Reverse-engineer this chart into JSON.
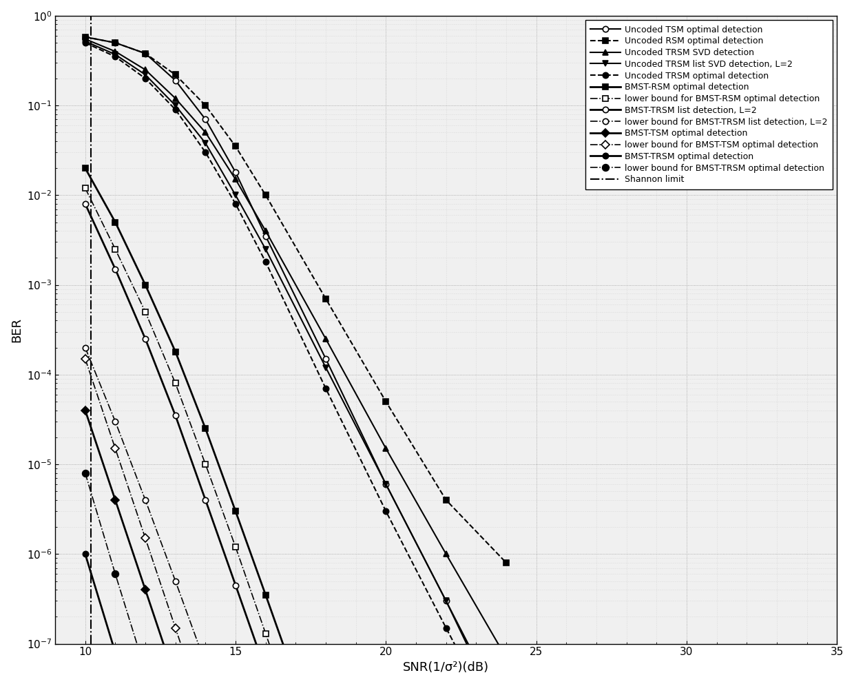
{
  "xlabel": "SNR(1/σ²)(dB)",
  "ylabel": "BER",
  "xlim": [
    9,
    35
  ],
  "ylim_log": [
    -7,
    0
  ],
  "background_color": "#ffffff",
  "series": [
    {
      "label": "Uncoded TSM optimal detection",
      "linestyle": "-",
      "linewidth": 1.5,
      "marker": "o",
      "markersize": 6,
      "color": "black",
      "fillstyle": "none",
      "x": [
        10,
        11,
        12,
        13,
        14,
        15,
        16,
        18,
        20,
        22,
        24
      ],
      "y": [
        0.58,
        0.5,
        0.38,
        0.19,
        0.07,
        0.018,
        0.0035,
        0.00015,
        6e-06,
        3e-07,
        1.2e-08
      ]
    },
    {
      "label": "Uncoded RSM optimal detection",
      "linestyle": "--",
      "linewidth": 1.5,
      "marker": "s",
      "markersize": 6,
      "color": "black",
      "fillstyle": "full",
      "x": [
        10,
        11,
        12,
        13,
        14,
        15,
        16,
        18,
        20,
        22,
        24
      ],
      "y": [
        0.58,
        0.5,
        0.38,
        0.22,
        0.1,
        0.035,
        0.01,
        0.0007,
        5e-05,
        4e-06,
        8e-07
      ]
    },
    {
      "label": "Uncoded TRSM SVD detection",
      "linestyle": "-",
      "linewidth": 1.5,
      "marker": "^",
      "markersize": 6,
      "color": "black",
      "fillstyle": "full",
      "x": [
        10,
        11,
        12,
        13,
        14,
        15,
        16,
        18,
        20,
        22,
        24
      ],
      "y": [
        0.55,
        0.4,
        0.25,
        0.12,
        0.05,
        0.015,
        0.004,
        0.00025,
        1.5e-05,
        1e-06,
        7e-08
      ]
    },
    {
      "label": "Uncoded TRSM list SVD detection, L=2",
      "linestyle": "-",
      "linewidth": 1.5,
      "marker": "v",
      "markersize": 6,
      "color": "black",
      "fillstyle": "full",
      "x": [
        10,
        11,
        12,
        13,
        14,
        15,
        16,
        18,
        20,
        22,
        24
      ],
      "y": [
        0.52,
        0.37,
        0.22,
        0.1,
        0.038,
        0.01,
        0.0025,
        0.00012,
        6e-06,
        3e-07,
        1.5e-08
      ]
    },
    {
      "label": "Uncoded TRSM optimal detection",
      "linestyle": "--",
      "linewidth": 1.5,
      "marker": "o",
      "markersize": 6,
      "color": "black",
      "fillstyle": "full",
      "x": [
        10,
        11,
        12,
        13,
        14,
        15,
        16,
        18,
        20,
        22,
        24
      ],
      "y": [
        0.5,
        0.35,
        0.2,
        0.09,
        0.03,
        0.008,
        0.0018,
        7e-05,
        3e-06,
        1.5e-07,
        8e-09
      ]
    },
    {
      "label": "BMST-RSM optimal detection",
      "linestyle": "-",
      "linewidth": 2.0,
      "marker": "s",
      "markersize": 6,
      "color": "black",
      "fillstyle": "full",
      "x": [
        10,
        11,
        12,
        13,
        14,
        15,
        16,
        18,
        20,
        22,
        24
      ],
      "y": [
        0.02,
        0.005,
        0.001,
        0.00018,
        2.5e-05,
        3e-06,
        3.5e-07,
        4.5e-09,
        6e-11,
        8e-13,
        1e-14
      ]
    },
    {
      "label": "lower bound for BMST-RSM optimal detection",
      "linestyle": "-.",
      "linewidth": 1.2,
      "marker": "s",
      "markersize": 6,
      "color": "black",
      "fillstyle": "none",
      "x": [
        10,
        11,
        12,
        13,
        14,
        15,
        16,
        18,
        20,
        22,
        24
      ],
      "y": [
        0.012,
        0.0025,
        0.0005,
        8e-05,
        1e-05,
        1.2e-06,
        1.3e-07,
        1.5e-09,
        2e-11,
        3e-13,
        4e-15
      ]
    },
    {
      "label": "BMST-TRSM list detection, L=2",
      "linestyle": "-",
      "linewidth": 2.0,
      "marker": "o",
      "markersize": 6,
      "color": "black",
      "fillstyle": "none",
      "x": [
        10,
        11,
        12,
        13,
        14,
        15,
        16,
        18,
        20,
        22,
        24
      ],
      "y": [
        0.008,
        0.0015,
        0.00025,
        3.5e-05,
        4e-06,
        4.5e-07,
        5e-08,
        6e-10,
        7e-12,
        9e-14,
        1e-15
      ]
    },
    {
      "label": "lower bound for BMST-TRSM list detection, L=2",
      "linestyle": "-.",
      "linewidth": 1.2,
      "marker": "o",
      "markersize": 6,
      "color": "black",
      "fillstyle": "none",
      "x": [
        10,
        11,
        12,
        13,
        14,
        15
      ],
      "y": [
        0.0002,
        3e-05,
        4e-06,
        5e-07,
        6e-08,
        8e-09
      ]
    },
    {
      "label": "BMST-TSM optimal detection",
      "linestyle": "-",
      "linewidth": 2.0,
      "marker": "D",
      "markersize": 6,
      "color": "black",
      "fillstyle": "full",
      "x": [
        10,
        11,
        12,
        13,
        14,
        15
      ],
      "y": [
        4e-05,
        4e-06,
        4e-07,
        4e-08,
        4e-09,
        4e-10
      ]
    },
    {
      "label": "lower bound for BMST-TSM optimal detection",
      "linestyle": "-.",
      "linewidth": 1.2,
      "marker": "D",
      "markersize": 6,
      "color": "black",
      "fillstyle": "none",
      "x": [
        10,
        11,
        12,
        13,
        14,
        15
      ],
      "y": [
        0.00015,
        1.5e-05,
        1.5e-06,
        1.5e-07,
        1.5e-08,
        1.5e-09
      ]
    },
    {
      "label": "BMST-TRSM optimal detection",
      "linestyle": "-",
      "linewidth": 2.0,
      "marker": "o",
      "markersize": 6,
      "color": "black",
      "fillstyle": "full",
      "x": [
        10,
        11,
        12,
        13,
        14
      ],
      "y": [
        1e-06,
        8e-08,
        6e-09,
        5e-10,
        4e-11
      ]
    },
    {
      "label": "lower bound for BMST-TRSM optimal detection",
      "linestyle": "-.",
      "linewidth": 1.2,
      "marker": "o",
      "markersize": 7,
      "color": "black",
      "fillstyle": "full",
      "x": [
        10,
        11,
        12,
        13
      ],
      "y": [
        8e-06,
        6e-07,
        5e-08,
        4e-09
      ]
    },
    {
      "label": "Shannon limit",
      "linestyle": "-.",
      "linewidth": 1.5,
      "marker": null,
      "color": "black",
      "fillstyle": "full",
      "x": [
        10.2,
        10.2
      ],
      "y": [
        1e-07,
        1.0
      ]
    }
  ]
}
